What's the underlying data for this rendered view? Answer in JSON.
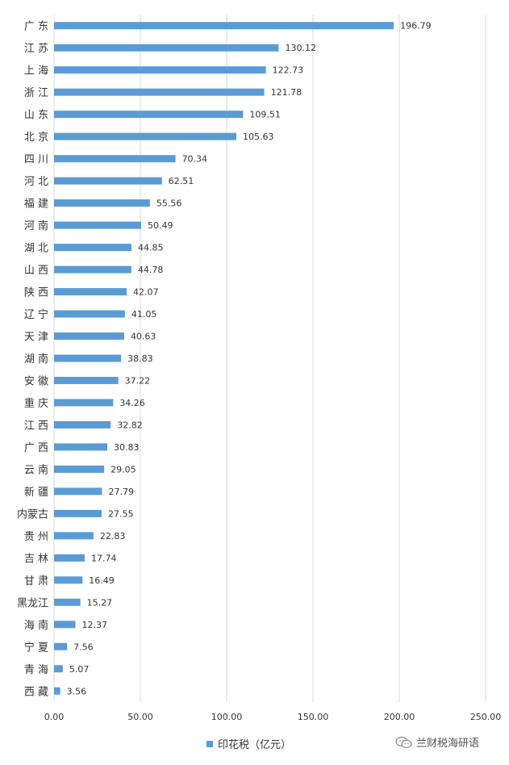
{
  "chart_data": {
    "type": "bar",
    "orientation": "horizontal",
    "categories": [
      "广 东",
      "江 苏",
      "上 海",
      "浙 江",
      "山 东",
      "北 京",
      "四 川",
      "河 北",
      "福 建",
      "河 南",
      "湖 北",
      "山 西",
      "陕 西",
      "辽 宁",
      "天 津",
      "湖 南",
      "安 徽",
      "重 庆",
      "江 西",
      "广 西",
      "云 南",
      "新 疆",
      "内蒙古",
      "贵 州",
      "吉 林",
      "甘 肃",
      "黑龙江",
      "海 南",
      "宁 夏",
      "青 海",
      "西 藏"
    ],
    "values": [
      196.79,
      130.12,
      122.73,
      121.78,
      109.51,
      105.63,
      70.34,
      62.51,
      55.56,
      50.49,
      44.85,
      44.78,
      42.07,
      41.05,
      40.63,
      38.83,
      37.22,
      34.26,
      32.82,
      30.83,
      29.05,
      27.79,
      27.55,
      22.83,
      17.74,
      16.49,
      15.27,
      12.37,
      7.56,
      5.07,
      3.56
    ],
    "value_labels": [
      "196.79",
      "130.12",
      "122.73",
      "121.78",
      "109.51",
      "105.63",
      "70.34",
      "62.51",
      "55.56",
      "50.49",
      "44.85",
      "44.78",
      "42.07",
      "41.05",
      "40.63",
      "38.83",
      "37.22",
      "34.26",
      "32.82",
      "30.83",
      "29.05",
      "27.79",
      "27.55",
      "22.83",
      "17.74",
      "16.49",
      "15.27",
      "12.37",
      "7.56",
      "5.07",
      "3.56"
    ],
    "xticks": [
      "0.00",
      "50.00",
      "100.00",
      "150.00",
      "200.00",
      "250.00"
    ],
    "xlim": [
      0,
      250
    ],
    "grid": true,
    "legend": {
      "label": "印花税（亿元）",
      "placement": "bottom"
    },
    "bar_color": "#5b9bd5"
  },
  "watermark": {
    "text": "兰财税海研语",
    "icon": "wechat-icon"
  }
}
